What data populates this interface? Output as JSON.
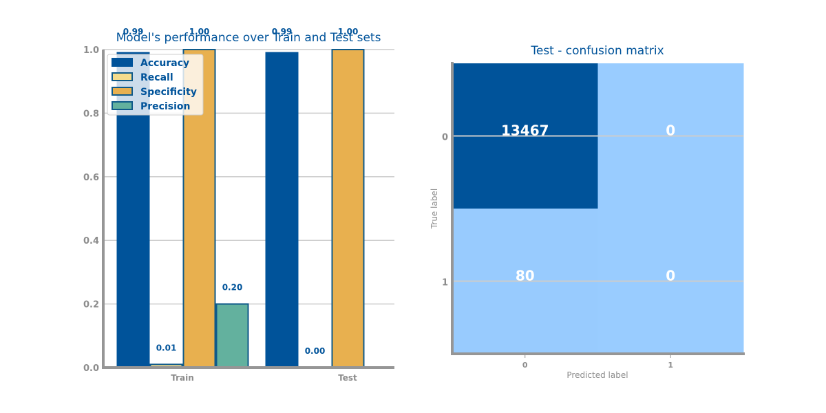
{
  "chart_data": [
    {
      "type": "bar",
      "title": "Model's performance over Train and Test sets",
      "xlabel": "",
      "ylabel": "",
      "categories": [
        "Train",
        "Test"
      ],
      "ylim": [
        0,
        1
      ],
      "yticks": [
        "0.0",
        "0.2",
        "0.4",
        "0.6",
        "0.8",
        "1.0"
      ],
      "grid": "horizontal",
      "legend_position": "top-left",
      "series": [
        {
          "name": "Accuracy",
          "values": [
            0.99,
            0.99
          ],
          "labels": [
            "0.99",
            "0.99"
          ],
          "color": "#00539a",
          "edge": "#00539a"
        },
        {
          "name": "Recall",
          "values": [
            0.01,
            0.0
          ],
          "labels": [
            "0.01",
            "0.00"
          ],
          "color": "#f4dc8c",
          "edge": "#0f5a8a"
        },
        {
          "name": "Specificity",
          "values": [
            1.0,
            1.0
          ],
          "labels": [
            "1.00",
            "1.00"
          ],
          "color": "#e8b04f",
          "edge": "#0f5a8a"
        },
        {
          "name": "Precision",
          "values": [
            0.2,
            0.0
          ],
          "labels": [
            "0.20",
            ""
          ],
          "color": "#63b19e",
          "edge": "#0f5a8a"
        }
      ]
    },
    {
      "type": "heatmap",
      "title": "Test - confusion matrix",
      "xlabel": "Predicted label",
      "ylabel": "True label",
      "x_categories": [
        "0",
        "1"
      ],
      "y_categories": [
        "0",
        "1"
      ],
      "matrix": [
        [
          13467,
          0
        ],
        [
          80,
          0
        ]
      ],
      "color_low": "#99ccff",
      "color_high": "#00539a",
      "text_color": "#ffffff"
    }
  ],
  "style": {
    "text_color": "#00539a",
    "tick_color": "#8c8c8c",
    "axis_color": "#969696",
    "grid_color": "#cccccc"
  }
}
